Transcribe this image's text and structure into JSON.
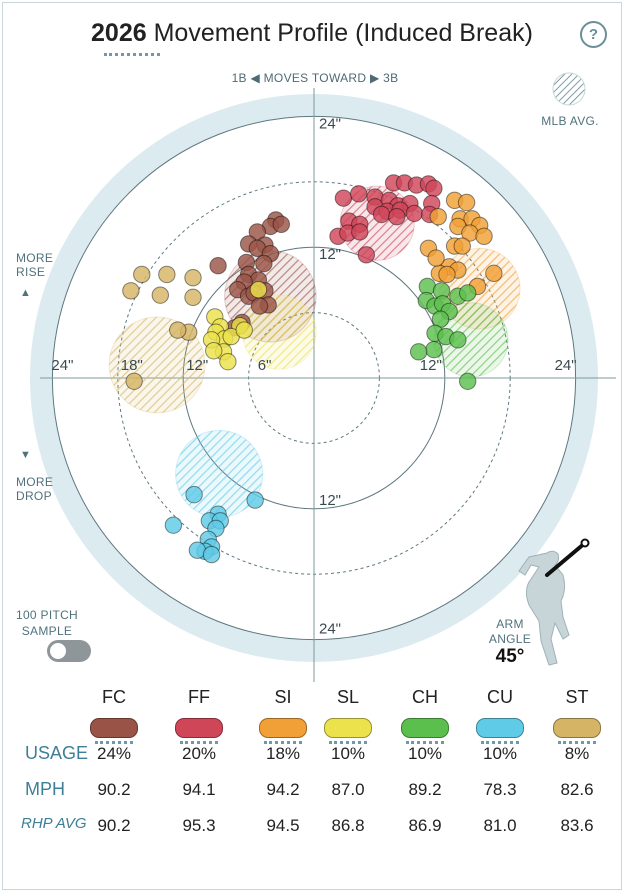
{
  "header": {
    "year": "2026",
    "title": "Movement Profile (Induced Break)",
    "help_symbol": "?",
    "moves_toward": "1B ◀  MOVES TOWARD  ▶ 3B",
    "mlb_avg_label": "MLB AVG."
  },
  "side_labels": {
    "more_rise": [
      "MORE",
      "RISE"
    ],
    "more_drop": [
      "MORE",
      "DROP"
    ],
    "sample_label": [
      "100 PITCH",
      "SAMPLE"
    ],
    "sample_toggle_on": false,
    "arm_angle_label": [
      "ARM",
      "ANGLE"
    ],
    "arm_angle_value": "45°"
  },
  "colors": {
    "FC": "#9a5447",
    "FF": "#cf4659",
    "SI": "#f0a036",
    "SL": "#ece24c",
    "CH": "#5bbf4e",
    "CU": "#5fcbe7",
    "ST": "#d5b565",
    "background_disc": "#dcebf0",
    "axis": "#7c98a2"
  },
  "chart_data": {
    "type": "scatter",
    "title": "2026 Movement Profile (Induced Break)",
    "x_axis": "horizontal break (in), 1B to 3B",
    "y_axis": "induced vertical break (in)",
    "rings": [
      6,
      12,
      18,
      24
    ],
    "ring_labels": {
      "top": [
        "24\"",
        "12\""
      ],
      "bottom": [
        "12\"",
        "24\""
      ],
      "left": [
        "24\"",
        "18\"",
        "12\"",
        "6\""
      ],
      "right": [
        "12\"",
        "24\""
      ]
    },
    "series": [
      {
        "name": "FC",
        "mlb_avg": {
          "x": -4.0,
          "y": 7.5,
          "r": 4.2
        },
        "points": [
          [
            -3.5,
            14.5
          ],
          [
            -4.0,
            13.9
          ],
          [
            -3.0,
            14.1
          ],
          [
            -5.2,
            13.4
          ],
          [
            -6.0,
            12.3
          ],
          [
            -4.5,
            12.2
          ],
          [
            -5.2,
            11.9
          ],
          [
            -4.0,
            11.4
          ],
          [
            -6.2,
            10.6
          ],
          [
            -4.6,
            10.5
          ],
          [
            -6.0,
            9.5
          ],
          [
            -5.1,
            9.0
          ],
          [
            -6.4,
            8.8
          ],
          [
            -7.0,
            8.1
          ],
          [
            -4.5,
            8.0
          ],
          [
            -6.0,
            7.5
          ],
          [
            -4.2,
            6.7
          ],
          [
            -6.6,
            5.1
          ],
          [
            -7.3,
            4.6
          ],
          [
            -8.8,
            10.3
          ],
          [
            -5.5,
            7.8
          ],
          [
            -5.0,
            6.6
          ]
        ]
      },
      {
        "name": "FF",
        "mlb_avg": {
          "x": 5.8,
          "y": 14.2,
          "r": 3.4
        },
        "points": [
          [
            7.3,
            17.9
          ],
          [
            8.3,
            17.9
          ],
          [
            9.4,
            17.7
          ],
          [
            10.5,
            17.8
          ],
          [
            11.0,
            17.4
          ],
          [
            2.7,
            16.5
          ],
          [
            4.1,
            16.9
          ],
          [
            5.6,
            16.6
          ],
          [
            6.9,
            16.3
          ],
          [
            7.7,
            15.8
          ],
          [
            8.8,
            16.0
          ],
          [
            10.8,
            16.0
          ],
          [
            5.6,
            15.7
          ],
          [
            6.7,
            15.3
          ],
          [
            7.9,
            15.4
          ],
          [
            9.2,
            15.1
          ],
          [
            10.6,
            15.0
          ],
          [
            3.2,
            14.4
          ],
          [
            4.2,
            14.1
          ],
          [
            6.2,
            15.0
          ],
          [
            7.6,
            14.8
          ],
          [
            2.2,
            13.0
          ],
          [
            3.1,
            13.3
          ],
          [
            4.2,
            13.4
          ],
          [
            4.8,
            11.3
          ]
        ]
      },
      {
        "name": "SI",
        "mlb_avg": {
          "x": 15.2,
          "y": 8.2,
          "r": 3.7
        },
        "points": [
          [
            12.9,
            16.3
          ],
          [
            14.0,
            16.1
          ],
          [
            11.4,
            14.8
          ],
          [
            13.4,
            14.6
          ],
          [
            14.5,
            14.6
          ],
          [
            15.2,
            14.0
          ],
          [
            13.2,
            13.9
          ],
          [
            14.3,
            13.3
          ],
          [
            15.6,
            13.0
          ],
          [
            10.5,
            11.9
          ],
          [
            12.9,
            12.1
          ],
          [
            13.6,
            12.1
          ],
          [
            12.4,
            10.2
          ],
          [
            13.2,
            9.9
          ],
          [
            11.5,
            9.6
          ],
          [
            12.2,
            9.5
          ],
          [
            16.5,
            9.6
          ],
          [
            15.0,
            8.4
          ],
          [
            11.2,
            11.0
          ]
        ]
      },
      {
        "name": "SL",
        "mlb_avg": {
          "x": -3.2,
          "y": 4.2,
          "r": 3.4
        },
        "points": [
          [
            -5.1,
            8.1
          ],
          [
            -9.1,
            5.6
          ],
          [
            -8.6,
            4.7
          ],
          [
            -9.0,
            4.2
          ],
          [
            -8.2,
            3.6
          ],
          [
            -9.4,
            3.5
          ],
          [
            -6.8,
            4.8
          ],
          [
            -7.6,
            3.8
          ],
          [
            -8.3,
            2.4
          ],
          [
            -9.2,
            2.5
          ],
          [
            -7.9,
            1.5
          ],
          [
            -6.4,
            4.4
          ]
        ]
      },
      {
        "name": "CH",
        "mlb_avg": {
          "x": 14.4,
          "y": 3.5,
          "r": 3.4
        },
        "points": [
          [
            10.4,
            8.4
          ],
          [
            11.7,
            8.0
          ],
          [
            10.3,
            7.1
          ],
          [
            11.1,
            6.6
          ],
          [
            11.8,
            6.8
          ],
          [
            13.2,
            7.5
          ],
          [
            12.4,
            6.1
          ],
          [
            14.1,
            7.8
          ],
          [
            11.6,
            5.4
          ],
          [
            11.1,
            4.1
          ],
          [
            12.1,
            3.8
          ],
          [
            13.2,
            3.5
          ],
          [
            11.0,
            2.6
          ],
          [
            9.6,
            2.4
          ],
          [
            14.1,
            -0.3
          ]
        ]
      },
      {
        "name": "CU",
        "mlb_avg": {
          "x": -8.7,
          "y": -8.8,
          "r": 4.0
        },
        "points": [
          [
            -11.0,
            -10.7
          ],
          [
            -5.4,
            -11.2
          ],
          [
            -8.8,
            -12.5
          ],
          [
            -9.6,
            -13.1
          ],
          [
            -8.6,
            -13.1
          ],
          [
            -9.0,
            -13.8
          ],
          [
            -12.9,
            -13.5
          ],
          [
            -9.7,
            -14.8
          ],
          [
            -9.4,
            -15.5
          ],
          [
            -10.0,
            -15.9
          ],
          [
            -10.7,
            -15.8
          ],
          [
            -9.4,
            -16.2
          ]
        ]
      },
      {
        "name": "ST",
        "mlb_avg": {
          "x": -14.4,
          "y": 1.2,
          "r": 4.4
        },
        "points": [
          [
            -15.8,
            9.5
          ],
          [
            -13.5,
            9.5
          ],
          [
            -11.1,
            9.2
          ],
          [
            -16.8,
            8.0
          ],
          [
            -14.1,
            7.6
          ],
          [
            -11.1,
            7.4
          ],
          [
            -11.5,
            4.2
          ],
          [
            -12.5,
            4.4
          ],
          [
            -16.5,
            -0.3
          ]
        ]
      }
    ]
  },
  "stats_table": {
    "row_labels": {
      "usage": "USAGE",
      "mph": "MPH",
      "rhp_avg": "RHP AVG"
    },
    "pitches": [
      {
        "code": "FC",
        "usage": "24%",
        "mph": "90.2",
        "rhp_avg": "90.2"
      },
      {
        "code": "FF",
        "usage": "20%",
        "mph": "94.1",
        "rhp_avg": "95.3"
      },
      {
        "code": "SI",
        "usage": "18%",
        "mph": "94.2",
        "rhp_avg": "94.5"
      },
      {
        "code": "SL",
        "usage": "10%",
        "mph": "87.0",
        "rhp_avg": "86.8"
      },
      {
        "code": "CH",
        "usage": "10%",
        "mph": "89.2",
        "rhp_avg": "86.9"
      },
      {
        "code": "CU",
        "usage": "10%",
        "mph": "78.3",
        "rhp_avg": "81.0"
      },
      {
        "code": "ST",
        "usage": "8%",
        "mph": "82.6",
        "rhp_avg": "83.6"
      }
    ]
  }
}
